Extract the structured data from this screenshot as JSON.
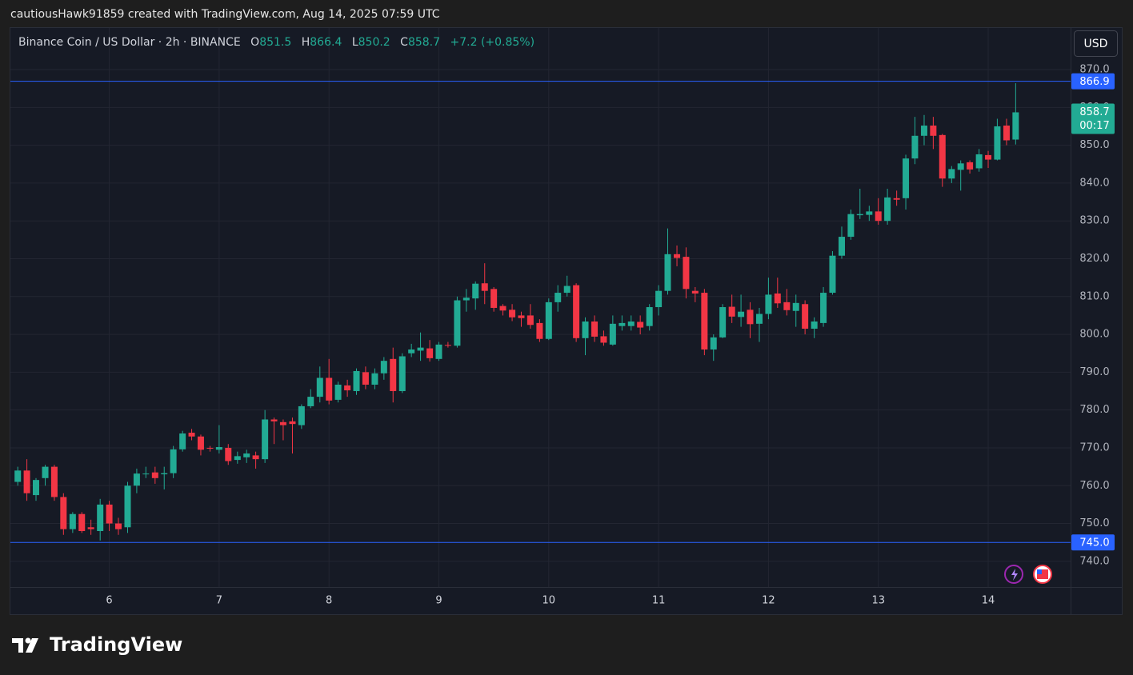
{
  "credit": "cautiousHawk91859 created with TradingView.com, Aug 14, 2025 07:59 UTC",
  "footer_logo": "TradingView",
  "chart_data": {
    "type": "candlestick",
    "title": "Binance Coin / US Dollar · 2h · BINANCE",
    "summary_letters": [
      "O",
      "H",
      "L",
      "C"
    ],
    "summary": {
      "open": 851.5,
      "high": 866.4,
      "low": 850.2,
      "close": 858.7,
      "change": "+7.2 (+0.85%)"
    },
    "currency": "USD",
    "up_color": "#22ab94",
    "down_color": "#f23645",
    "x": [
      5.167,
      5.25,
      5.333,
      5.417,
      5.5,
      5.583,
      5.667,
      5.75,
      5.833,
      5.917,
      6,
      6.083,
      6.167,
      6.25,
      6.333,
      6.417,
      6.5,
      6.583,
      6.667,
      6.75,
      6.833,
      6.917,
      7,
      7.083,
      7.167,
      7.25,
      7.333,
      7.417,
      7.5,
      7.583,
      7.667,
      7.75,
      7.833,
      7.917,
      8,
      8.083,
      8.167,
      8.25,
      8.333,
      8.417,
      8.5,
      8.583,
      8.667,
      8.75,
      8.833,
      8.917,
      9,
      9.083,
      9.167,
      9.25,
      9.333,
      9.417,
      9.5,
      9.583,
      9.667,
      9.75,
      9.833,
      9.917,
      10,
      10.083,
      10.167,
      10.25,
      10.333,
      10.417,
      10.5,
      10.583,
      10.667,
      10.75,
      10.833,
      10.917,
      11,
      11.083,
      11.167,
      11.25,
      11.333,
      11.417,
      11.5,
      11.583,
      11.667,
      11.75,
      11.833,
      11.917,
      12,
      12.083,
      12.167,
      12.25,
      12.333,
      12.417,
      12.5,
      12.583,
      12.667,
      12.75,
      12.833,
      12.917,
      13,
      13.083,
      13.167,
      13.25,
      13.333,
      13.417,
      13.5,
      13.583,
      13.667,
      13.75,
      13.833,
      13.917,
      14,
      14.083,
      14.167,
      14.25
    ],
    "open": [
      761,
      764,
      757.5,
      762,
      765,
      757,
      748.5,
      752.5,
      749,
      748,
      755,
      750,
      749,
      760,
      763,
      763.5,
      763,
      763.3,
      769.6,
      774,
      773,
      770,
      769.5,
      770,
      766.8,
      767.5,
      768,
      767,
      777.5,
      776.8,
      777,
      776,
      781,
      783.5,
      788.5,
      782.7,
      786.5,
      785,
      790,
      786.7,
      789.7,
      793.5,
      785,
      795,
      795.7,
      796.3,
      793.5,
      797.2,
      797,
      809,
      809.5,
      813.5,
      812,
      807.5,
      806.5,
      805,
      805,
      803,
      798.8,
      808.5,
      811,
      813,
      799,
      803.4,
      799.5,
      797.3,
      802.2,
      802.2,
      803.3,
      802.2,
      807.2,
      811.5,
      821.2,
      820.5,
      811.5,
      811,
      796,
      799.2,
      807.3,
      804.6,
      806.5,
      802.8,
      805.4,
      810.8,
      808.5,
      806.2,
      808,
      801.5,
      803,
      811,
      820.8,
      825.8,
      831.5,
      831.6,
      832.5,
      830,
      836,
      836,
      846.5,
      852.5,
      855.2,
      852.7,
      841.2,
      843.5,
      845.5,
      843.9,
      847.4,
      846.2,
      855.2,
      851.5
    ],
    "high": [
      765,
      767,
      762,
      765.5,
      765.5,
      758,
      753,
      753,
      751,
      756.5,
      756,
      751.5,
      761,
      764.5,
      765,
      765,
      765,
      770.5,
      774.5,
      775,
      773.5,
      770.5,
      776,
      771,
      769,
      769.5,
      769,
      780,
      778,
      777.5,
      778,
      781.5,
      785.5,
      791.5,
      793.5,
      787.5,
      788,
      791,
      791.5,
      791,
      794,
      796.5,
      795,
      797.5,
      800.5,
      798.5,
      798,
      798,
      810,
      812,
      814,
      818.8,
      812.5,
      808,
      808,
      806,
      808,
      804,
      809.5,
      813,
      815.5,
      813.5,
      804.5,
      805,
      801,
      805,
      805,
      805,
      805,
      808,
      813,
      828,
      823.5,
      823,
      812.5,
      812,
      800,
      808,
      810.5,
      810.5,
      808.5,
      807,
      815,
      815,
      812,
      810.5,
      809,
      804.5,
      812.5,
      822,
      828.5,
      833,
      838.5,
      834,
      836,
      838.5,
      838,
      847.5,
      857.5,
      858,
      857.5,
      853,
      844.5,
      846,
      846,
      849,
      848.5,
      857,
      857,
      866.4
    ],
    "low": [
      760,
      756,
      756,
      760,
      756,
      747,
      747.5,
      747.5,
      747,
      745.5,
      748,
      747,
      747.5,
      758,
      762,
      760.5,
      759,
      762,
      769,
      772,
      768,
      769,
      768.5,
      765.5,
      765.8,
      766,
      764.5,
      766,
      771,
      772,
      768.5,
      775,
      780.5,
      782,
      781.5,
      782,
      783.5,
      784,
      785.5,
      785.5,
      788,
      782,
      784.5,
      794,
      793,
      792.8,
      793,
      796.5,
      796.5,
      806,
      806.5,
      808,
      806,
      805,
      803.5,
      802,
      801.5,
      798,
      798.5,
      806,
      810,
      798,
      794.5,
      798,
      797,
      797,
      801,
      801,
      800,
      801,
      805,
      810.5,
      818,
      809.5,
      808.5,
      794.5,
      793,
      799,
      803,
      802,
      799,
      798,
      804,
      807,
      805,
      802,
      800,
      799,
      802,
      810.5,
      820,
      825,
      830.5,
      830,
      829,
      829,
      834,
      833,
      845,
      850,
      849,
      839,
      840,
      838,
      842.5,
      843,
      844,
      846,
      850,
      850.2
    ],
    "close": [
      764,
      758,
      761.5,
      765,
      757,
      748.5,
      752.5,
      748,
      748.5,
      755,
      750,
      748.5,
      760,
      763.2,
      763.2,
      762,
      763.3,
      769.6,
      773.8,
      773,
      769.5,
      769.8,
      770.2,
      766.5,
      767.8,
      768.5,
      767,
      777.5,
      777,
      776,
      776.3,
      781,
      783.5,
      788.5,
      782.5,
      786.7,
      785.2,
      790.3,
      786.7,
      789.7,
      793,
      785,
      794.2,
      796,
      796.5,
      793.7,
      797.3,
      797.1,
      809,
      809.7,
      813.4,
      811.5,
      807,
      806.3,
      804.5,
      804.3,
      802.5,
      798.8,
      808.5,
      811,
      812.8,
      799,
      803.4,
      799.4,
      797.8,
      802.8,
      803,
      803.4,
      801.8,
      807.2,
      811.5,
      821.2,
      820.2,
      812,
      810.8,
      796,
      799.2,
      807.2,
      804.7,
      806,
      802.7,
      805.4,
      810.5,
      808.2,
      806.4,
      808.3,
      801.5,
      803.4,
      811,
      820.8,
      825.8,
      831.8,
      831.8,
      832.5,
      830,
      836.2,
      835.6,
      846.5,
      852.5,
      855.2,
      852.5,
      841.2,
      843.7,
      845.2,
      843.6,
      847.6,
      846.2,
      855,
      851.3,
      858.7
    ],
    "xlim": [
      5.1,
      14.75
    ],
    "xticks": [
      6,
      7,
      8,
      9,
      10,
      11,
      12,
      13,
      14
    ],
    "ylim": [
      733.2,
      881
    ],
    "yticks": [
      {
        "value": 740,
        "label": "740.0"
      },
      {
        "value": 750,
        "label": "750.0"
      },
      {
        "value": 760,
        "label": "760.0"
      },
      {
        "value": 770,
        "label": "770.0"
      },
      {
        "value": 780,
        "label": "780.0"
      },
      {
        "value": 790,
        "label": "790.0"
      },
      {
        "value": 800,
        "label": "800.0"
      },
      {
        "value": 810,
        "label": "810.0"
      },
      {
        "value": 820,
        "label": "820.0"
      },
      {
        "value": 830,
        "label": "830.0"
      },
      {
        "value": 840,
        "label": "840.0"
      },
      {
        "value": 850,
        "label": "850.0"
      },
      {
        "value": 860,
        "label": "860.0"
      },
      {
        "value": 870,
        "label": "870.0"
      }
    ],
    "hlines": [
      {
        "value": 866.9,
        "label": "866.9"
      },
      {
        "value": 745,
        "label": "745.0"
      }
    ],
    "hline_color": "#2962ff",
    "last_price": {
      "value": 858.7,
      "label": "858.7"
    },
    "countdown": "00:17",
    "grid": true
  }
}
